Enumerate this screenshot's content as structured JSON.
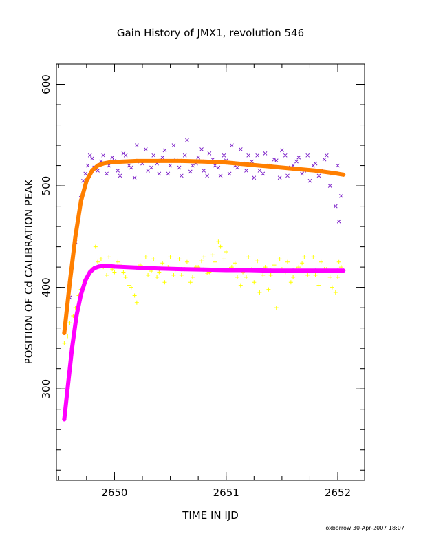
{
  "chart_data": {
    "type": "scatter",
    "title": "Gain History of JMX1, revolution 546",
    "xlabel": "TIME IN IJD",
    "ylabel": "POSITION OF Cd CALIBRATION PEAK",
    "xlim": [
      2649.48,
      2652.24
    ],
    "ylim": [
      210,
      620
    ],
    "xticks": [
      2650,
      2651,
      2652
    ],
    "xtick_labels": [
      "2650",
      "2651",
      "2652"
    ],
    "yticks": [
      300,
      400,
      500,
      600
    ],
    "ytick_labels": [
      "300",
      "400",
      "500",
      "600"
    ],
    "x_minor_step": 0.25,
    "y_minor_step": 20,
    "grid": false,
    "legend": "none",
    "series": [
      {
        "marker": "x",
        "color": "#7b1fc8",
        "x": [
          2649.56,
          2649.62,
          2649.68,
          2649.72,
          2649.76,
          2649.8,
          2649.85,
          2649.9,
          2649.95,
          2650.0,
          2650.05,
          2650.1,
          2650.15,
          2650.2,
          2650.25,
          2650.3,
          2650.35,
          2650.4,
          2650.45,
          2650.5,
          2650.55,
          2650.6,
          2650.65,
          2650.7,
          2650.75,
          2650.8,
          2650.85,
          2650.9,
          2650.95,
          2651.0,
          2651.05,
          2651.1,
          2651.15,
          2651.2,
          2651.25,
          2651.3,
          2651.35,
          2651.4,
          2651.45,
          2651.5,
          2651.55,
          2651.6,
          2651.65,
          2651.7,
          2651.75,
          2651.8,
          2651.85,
          2651.9,
          2651.95,
          2652.0,
          2652.03
        ],
        "y": [
          360,
          420,
          470,
          505,
          520,
          527,
          515,
          530,
          520,
          525,
          510,
          530,
          518,
          540,
          522,
          515,
          530,
          512,
          535,
          520,
          525,
          510,
          545,
          520,
          528,
          515,
          532,
          520,
          510,
          525,
          540,
          518,
          522,
          530,
          508,
          515,
          532,
          520,
          525,
          535,
          510,
          520,
          528,
          515,
          505,
          522,
          515,
          530,
          512,
          520,
          490
        ]
      },
      {
        "marker": "x",
        "color": "#7b1fc8",
        "x": [
          2649.6,
          2649.65,
          2649.7,
          2649.74,
          2649.78,
          2649.82,
          2649.88,
          2649.93,
          2649.98,
          2650.03,
          2650.08,
          2650.13,
          2650.18,
          2650.23,
          2650.28,
          2650.33,
          2650.38,
          2650.43,
          2650.48,
          2650.53,
          2650.58,
          2650.63,
          2650.68,
          2650.73,
          2650.78,
          2650.83,
          2650.88,
          2650.93,
          2650.98,
          2651.03,
          2651.08,
          2651.13,
          2651.18,
          2651.23,
          2651.28,
          2651.33,
          2651.38,
          2651.43,
          2651.48,
          2651.53,
          2651.58,
          2651.63,
          2651.68,
          2651.73,
          2651.78,
          2651.83,
          2651.88,
          2651.93,
          2651.98,
          2652.01
        ],
        "y": [
          390,
          445,
          488,
          512,
          530,
          518,
          524,
          512,
          528,
          515,
          532,
          520,
          508,
          524,
          536,
          518,
          522,
          528,
          512,
          540,
          518,
          530,
          514,
          522,
          536,
          510,
          526,
          518,
          530,
          512,
          520,
          536,
          515,
          524,
          530,
          512,
          520,
          526,
          508,
          530,
          518,
          524,
          512,
          530,
          520,
          510,
          526,
          500,
          480,
          465
        ]
      },
      {
        "marker": "+",
        "color": "#ffff00",
        "x": [
          2649.55,
          2649.6,
          2649.65,
          2649.7,
          2649.75,
          2649.8,
          2649.85,
          2649.9,
          2649.95,
          2650.0,
          2650.05,
          2650.1,
          2650.15,
          2650.2,
          2650.25,
          2650.3,
          2650.35,
          2650.4,
          2650.45,
          2650.5,
          2650.55,
          2650.6,
          2650.65,
          2650.7,
          2650.75,
          2650.8,
          2650.85,
          2650.9,
          2650.95,
          2651.0,
          2651.05,
          2651.1,
          2651.15,
          2651.2,
          2651.25,
          2651.3,
          2651.35,
          2651.4,
          2651.45,
          2651.5,
          2651.55,
          2651.6,
          2651.65,
          2651.7,
          2651.75,
          2651.8,
          2651.85,
          2651.9,
          2651.95,
          2652.0,
          2652.03
        ],
        "y": [
          345,
          365,
          380,
          398,
          410,
          418,
          425,
          420,
          430,
          415,
          422,
          410,
          400,
          385,
          420,
          412,
          428,
          415,
          405,
          430,
          418,
          412,
          425,
          410,
          420,
          430,
          415,
          425,
          440,
          435,
          420,
          410,
          415,
          430,
          405,
          395,
          420,
          412,
          380,
          418,
          425,
          410,
          420,
          430,
          415,
          412,
          425,
          418,
          400,
          410,
          420
        ]
      },
      {
        "marker": "+",
        "color": "#ffff00",
        "x": [
          2649.58,
          2649.63,
          2649.68,
          2649.73,
          2649.78,
          2649.83,
          2649.88,
          2649.93,
          2649.98,
          2650.03,
          2650.08,
          2650.13,
          2650.18,
          2650.23,
          2650.28,
          2650.33,
          2650.38,
          2650.43,
          2650.48,
          2650.53,
          2650.58,
          2650.63,
          2650.68,
          2650.73,
          2650.78,
          2650.83,
          2650.88,
          2650.93,
          2650.98,
          2651.03,
          2651.08,
          2651.13,
          2651.18,
          2651.23,
          2651.28,
          2651.33,
          2651.38,
          2651.43,
          2651.48,
          2651.53,
          2651.58,
          2651.63,
          2651.68,
          2651.73,
          2651.78,
          2651.83,
          2651.88,
          2651.93,
          2651.98,
          2652.01
        ],
        "y": [
          352,
          372,
          392,
          405,
          414,
          440,
          428,
          412,
          418,
          425,
          415,
          402,
          392,
          422,
          430,
          416,
          410,
          424,
          420,
          412,
          428,
          418,
          405,
          420,
          426,
          414,
          432,
          445,
          428,
          418,
          424,
          402,
          410,
          418,
          426,
          412,
          398,
          422,
          428,
          415,
          405,
          418,
          424,
          412,
          430,
          402,
          418,
          410,
          395,
          425
        ]
      },
      {
        "marker": "curve",
        "color": "#ff7f00",
        "x": [
          2649.55,
          2649.6,
          2649.65,
          2649.7,
          2649.75,
          2649.8,
          2649.85,
          2649.9,
          2649.95,
          2650.0,
          2650.2,
          2650.4,
          2650.6,
          2650.8,
          2651.0,
          2651.2,
          2651.4,
          2651.6,
          2651.8,
          2652.0,
          2652.05
        ],
        "y": [
          355,
          405,
          450,
          485,
          505,
          515,
          520,
          522,
          523,
          523.5,
          524.5,
          524.5,
          524.5,
          524,
          523,
          521,
          519,
          517,
          515,
          512,
          511
        ]
      },
      {
        "marker": "curve",
        "color": "#ff00ff",
        "x": [
          2649.55,
          2649.58,
          2649.62,
          2649.66,
          2649.7,
          2649.74,
          2649.78,
          2649.82,
          2649.86,
          2649.9,
          2649.95,
          2650.0,
          2650.2,
          2650.4,
          2650.6,
          2650.8,
          2651.0,
          2651.2,
          2651.4,
          2651.6,
          2651.8,
          2652.0,
          2652.05
        ],
        "y": [
          270,
          300,
          340,
          372,
          393,
          407,
          415,
          419,
          420.5,
          421,
          421,
          420.5,
          419.5,
          418.5,
          418,
          417.5,
          417,
          417,
          416.5,
          416.5,
          416.5,
          416.5,
          416.5
        ]
      }
    ]
  },
  "footer": "oxborrow 30-Apr-2007 18:07"
}
